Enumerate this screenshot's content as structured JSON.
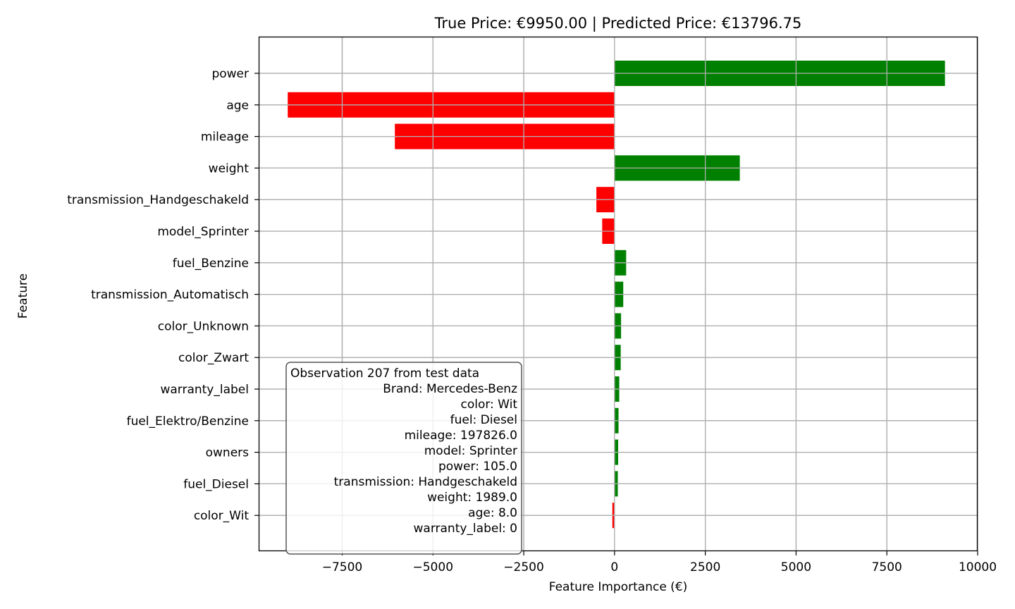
{
  "chart_data": {
    "type": "bar",
    "orientation": "horizontal",
    "title": "True Price: €9950.00 | Predicted Price: €13796.75",
    "xlabel": "Feature Importance (€)",
    "ylabel": "Feature",
    "xlim": [
      -9800,
      10000
    ],
    "xticks": [
      -7500,
      -5000,
      -2500,
      0,
      2500,
      5000,
      7500,
      10000
    ],
    "xtick_labels": [
      "−7500",
      "−5000",
      "−2500",
      "0",
      "2500",
      "5000",
      "7500",
      "10000"
    ],
    "grid": true,
    "positive_color": "#008000",
    "negative_color": "#ff0000",
    "categories": [
      "power",
      "age",
      "mileage",
      "weight",
      "transmission_Handgeschakeld",
      "model_Sprinter",
      "fuel_Benzine",
      "transmission_Automatisch",
      "color_Unknown",
      "color_Zwart",
      "warranty_label",
      "fuel_Elektro/Benzine",
      "owners",
      "fuel_Diesel",
      "color_Wit"
    ],
    "values": [
      9100,
      -9000,
      -6050,
      3450,
      -500,
      -340,
      320,
      240,
      180,
      170,
      130,
      110,
      100,
      90,
      -60
    ],
    "annotation": {
      "lines": [
        "Observation 207 from test data",
        "Brand: Mercedes-Benz",
        "color: Wit",
        "fuel: Diesel",
        "mileage: 197826.0",
        "model: Sprinter",
        "power: 105.0",
        "transmission: Handgeschakeld",
        "weight: 1989.0",
        "age: 8.0",
        "warranty_label: 0"
      ],
      "placement": "lower-left"
    }
  }
}
